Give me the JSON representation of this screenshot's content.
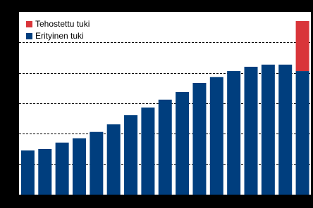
{
  "chart_data": {
    "type": "stacked-bar",
    "categories": [
      null,
      null,
      null,
      null,
      null,
      null,
      null,
      null,
      null,
      null,
      null,
      null,
      null,
      null,
      null,
      null,
      null
    ],
    "series": [
      {
        "name": "Erityinen tuki",
        "color": "#003e7e",
        "values": [
          1.45,
          1.5,
          1.71,
          1.85,
          2.06,
          2.31,
          2.61,
          2.86,
          3.12,
          3.37,
          3.67,
          3.86,
          4.06,
          4.2,
          4.27,
          4.27,
          4.06
        ]
      },
      {
        "name": "Tehostettu tuki",
        "color": "#d9353a",
        "values": [
          null,
          null,
          null,
          null,
          null,
          null,
          null,
          null,
          null,
          null,
          null,
          null,
          null,
          null,
          null,
          null,
          1.64
        ]
      }
    ],
    "ylim": [
      0,
      6
    ],
    "yticks": [
      1,
      2,
      3,
      4,
      5
    ],
    "grid": true
  }
}
